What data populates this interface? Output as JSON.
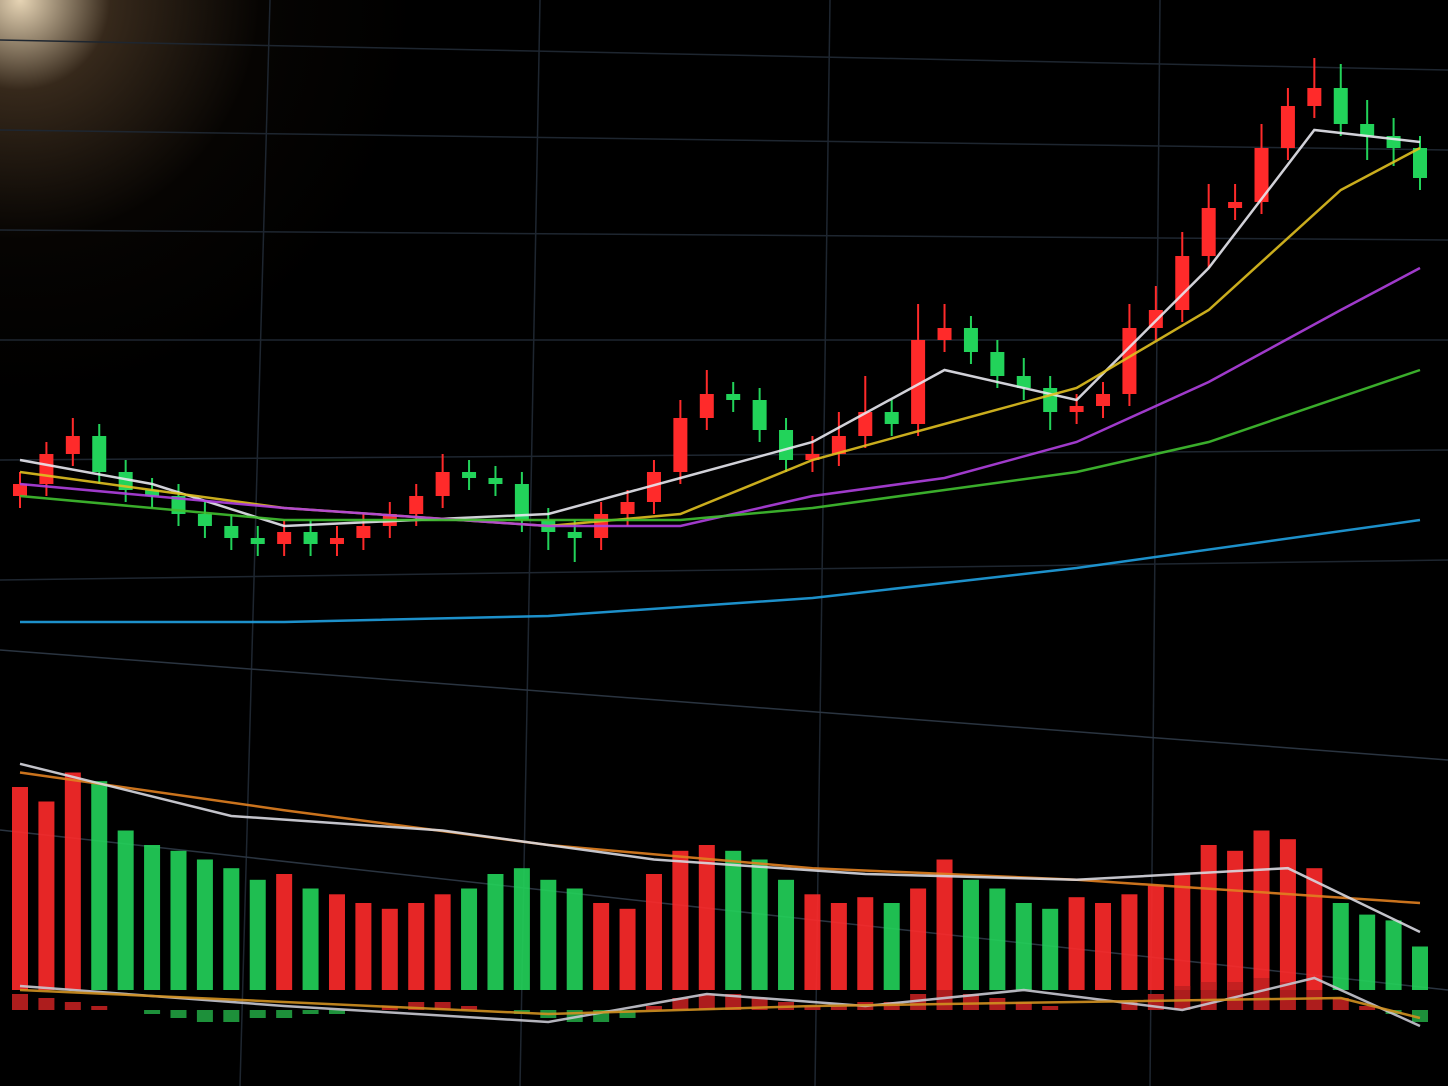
{
  "chart_data": [
    {
      "type": "candlestick",
      "up_color": "#ff2a2a",
      "down_color": "#22d35a",
      "xlim": [
        0,
        53
      ],
      "ylim": [
        0,
        100
      ],
      "open": [
        24,
        26,
        31,
        34,
        28,
        25,
        24,
        21,
        19,
        17,
        16,
        18,
        16,
        17,
        19,
        21,
        24,
        28,
        27,
        26,
        20,
        18,
        17,
        21,
        23,
        28,
        37,
        41,
        40,
        35,
        30,
        31,
        34,
        38,
        36,
        50,
        52,
        48,
        44,
        42,
        38,
        39,
        41,
        52,
        55,
        64,
        72,
        73,
        82,
        89,
        92,
        86,
        84,
        82
      ],
      "high": [
        28,
        33,
        37,
        36,
        30,
        27,
        26,
        23,
        21,
        19,
        20,
        20,
        19,
        21,
        23,
        26,
        31,
        30,
        29,
        28,
        22,
        20,
        23,
        25,
        30,
        40,
        45,
        43,
        42,
        37,
        34,
        38,
        44,
        40,
        56,
        56,
        54,
        50,
        47,
        44,
        41,
        43,
        56,
        59,
        68,
        76,
        76,
        86,
        92,
        97,
        96,
        90,
        87,
        84
      ],
      "low": [
        22,
        24,
        29,
        26,
        23,
        22,
        19,
        17,
        15,
        14,
        14,
        14,
        14,
        15,
        17,
        19,
        22,
        25,
        24,
        18,
        15,
        13,
        15,
        19,
        21,
        26,
        35,
        38,
        33,
        28,
        28,
        29,
        32,
        34,
        34,
        48,
        46,
        42,
        40,
        35,
        36,
        37,
        39,
        50,
        53,
        62,
        70,
        71,
        80,
        87,
        84,
        80,
        79,
        75
      ],
      "close": [
        26,
        31,
        34,
        28,
        25,
        24,
        21,
        19,
        17,
        16,
        18,
        16,
        17,
        19,
        21,
        24,
        28,
        27,
        26,
        20,
        18,
        17,
        21,
        23,
        28,
        37,
        41,
        40,
        35,
        30,
        31,
        34,
        38,
        36,
        50,
        52,
        48,
        44,
        42,
        38,
        39,
        41,
        52,
        55,
        64,
        72,
        73,
        82,
        89,
        92,
        86,
        84,
        82,
        77
      ],
      "lines": [
        {
          "color": "#e8e8f0",
          "x": [
            0,
            5,
            10,
            15,
            20,
            25,
            30,
            35,
            40,
            45,
            49,
            53
          ],
          "values": [
            30,
            26,
            19,
            20,
            21,
            27,
            33,
            45,
            40,
            62,
            85,
            83
          ]
        },
        {
          "color": "#e0c020",
          "x": [
            0,
            10,
            20,
            25,
            30,
            35,
            40,
            45,
            50,
            53
          ],
          "values": [
            28,
            22,
            19,
            21,
            30,
            36,
            42,
            55,
            75,
            82
          ]
        },
        {
          "color": "#b040e0",
          "x": [
            0,
            10,
            20,
            25,
            30,
            35,
            40,
            45,
            50,
            53
          ],
          "values": [
            26,
            22,
            19,
            19,
            24,
            27,
            33,
            43,
            55,
            62
          ]
        },
        {
          "color": "#40c030",
          "x": [
            0,
            10,
            20,
            25,
            30,
            35,
            40,
            45,
            53
          ],
          "values": [
            24,
            20,
            20,
            20,
            22,
            25,
            28,
            33,
            45
          ]
        },
        {
          "color": "#20a0e0",
          "x": [
            0,
            10,
            20,
            30,
            40,
            53
          ],
          "values": [
            3,
            3,
            4,
            7,
            12,
            20
          ]
        }
      ]
    },
    {
      "type": "bar",
      "xlim": [
        0,
        53
      ],
      "ylim": [
        0,
        100
      ],
      "values": [
        70,
        65,
        75,
        72,
        55,
        50,
        48,
        45,
        42,
        38,
        40,
        35,
        33,
        30,
        28,
        30,
        33,
        35,
        40,
        42,
        38,
        35,
        30,
        28,
        40,
        48,
        50,
        48,
        45,
        38,
        33,
        30,
        32,
        30,
        35,
        45,
        38,
        35,
        30,
        28,
        32,
        30,
        33,
        36,
        40,
        50,
        48,
        55,
        52,
        42,
        30,
        26,
        24,
        15
      ],
      "lines": [
        {
          "color": "#e08020",
          "x": [
            0,
            10,
            20,
            30,
            40,
            53
          ],
          "values": [
            75,
            62,
            50,
            42,
            38,
            30
          ]
        },
        {
          "color": "#d8d8e0",
          "x": [
            0,
            8,
            16,
            24,
            32,
            40,
            48,
            53
          ],
          "values": [
            78,
            60,
            55,
            45,
            40,
            38,
            42,
            20
          ]
        }
      ]
    },
    {
      "type": "bar",
      "xlim": [
        0,
        53
      ],
      "ylim": [
        -15,
        15
      ],
      "up_color": "#c02020",
      "down_color": "#20a040",
      "values": [
        4,
        3,
        2,
        1,
        0,
        -1,
        -2,
        -3,
        -3,
        -2,
        -2,
        -1,
        -1,
        0,
        1,
        2,
        2,
        1,
        0,
        -1,
        -2,
        -3,
        -3,
        -2,
        1,
        3,
        4,
        4,
        3,
        2,
        1,
        1,
        2,
        2,
        4,
        5,
        4,
        3,
        2,
        1,
        0,
        0,
        2,
        4,
        6,
        7,
        7,
        8,
        7,
        5,
        3,
        1,
        -1,
        -3
      ],
      "lines": [
        {
          "color": "#c8c8d0",
          "x": [
            0,
            10,
            20,
            26,
            32,
            38,
            44,
            49,
            53
          ],
          "values": [
            6,
            1,
            -3,
            4,
            1,
            5,
            0,
            8,
            -4
          ]
        },
        {
          "color": "#d09020",
          "x": [
            0,
            10,
            20,
            30,
            40,
            50,
            53
          ],
          "values": [
            5,
            2,
            -1,
            1,
            2,
            3,
            -2
          ]
        }
      ]
    }
  ]
}
